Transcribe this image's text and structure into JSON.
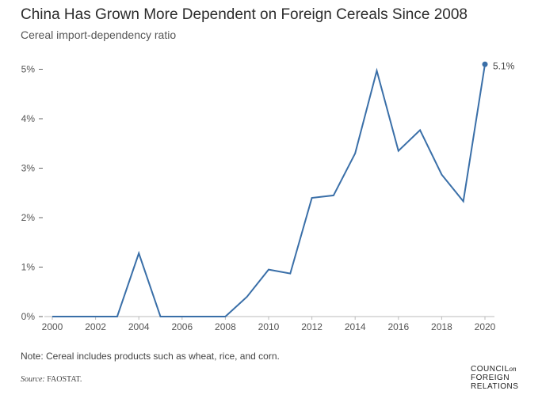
{
  "title": "China Has Grown More Dependent on Foreign Cereals Since 2008",
  "subtitle": "Cereal import-dependency ratio",
  "note": "Note: Cereal includes products such as wheat, rice, and corn.",
  "source_label": "Source:",
  "source_text": "FAOSTAT.",
  "logo": {
    "line1": "COUNCIL",
    "line1_suffix": "on",
    "line2": "FOREIGN",
    "line3": "RELATIONS"
  },
  "colors": {
    "line": "#3a6fa8",
    "axis": "#bbbbbb",
    "text": "#555555"
  },
  "chart_data": {
    "type": "line",
    "title": "China Has Grown More Dependent on Foreign Cereals Since 2008",
    "subtitle": "Cereal import-dependency ratio",
    "xlabel": "",
    "ylabel": "",
    "x": [
      2000,
      2001,
      2002,
      2003,
      2004,
      2005,
      2006,
      2007,
      2008,
      2009,
      2010,
      2011,
      2012,
      2013,
      2014,
      2015,
      2016,
      2017,
      2018,
      2019,
      2020
    ],
    "series": [
      {
        "values": [
          0,
          0,
          0,
          0,
          1.28,
          0,
          0,
          0,
          0,
          0.4,
          0.95,
          0.87,
          2.4,
          2.45,
          3.3,
          4.97,
          3.35,
          3.77,
          2.87,
          2.33,
          5.1
        ]
      }
    ],
    "xlim": [
      2000,
      2020
    ],
    "ylim": [
      0,
      5
    ],
    "x_ticks": [
      2000,
      2002,
      2004,
      2006,
      2008,
      2010,
      2012,
      2014,
      2016,
      2018,
      2020
    ],
    "y_ticks": [
      0,
      1,
      2,
      3,
      4,
      5
    ],
    "y_tick_labels": [
      "0%",
      "1%",
      "2%",
      "3%",
      "4%",
      "5%"
    ],
    "end_label": "5.1%",
    "grid": false
  }
}
